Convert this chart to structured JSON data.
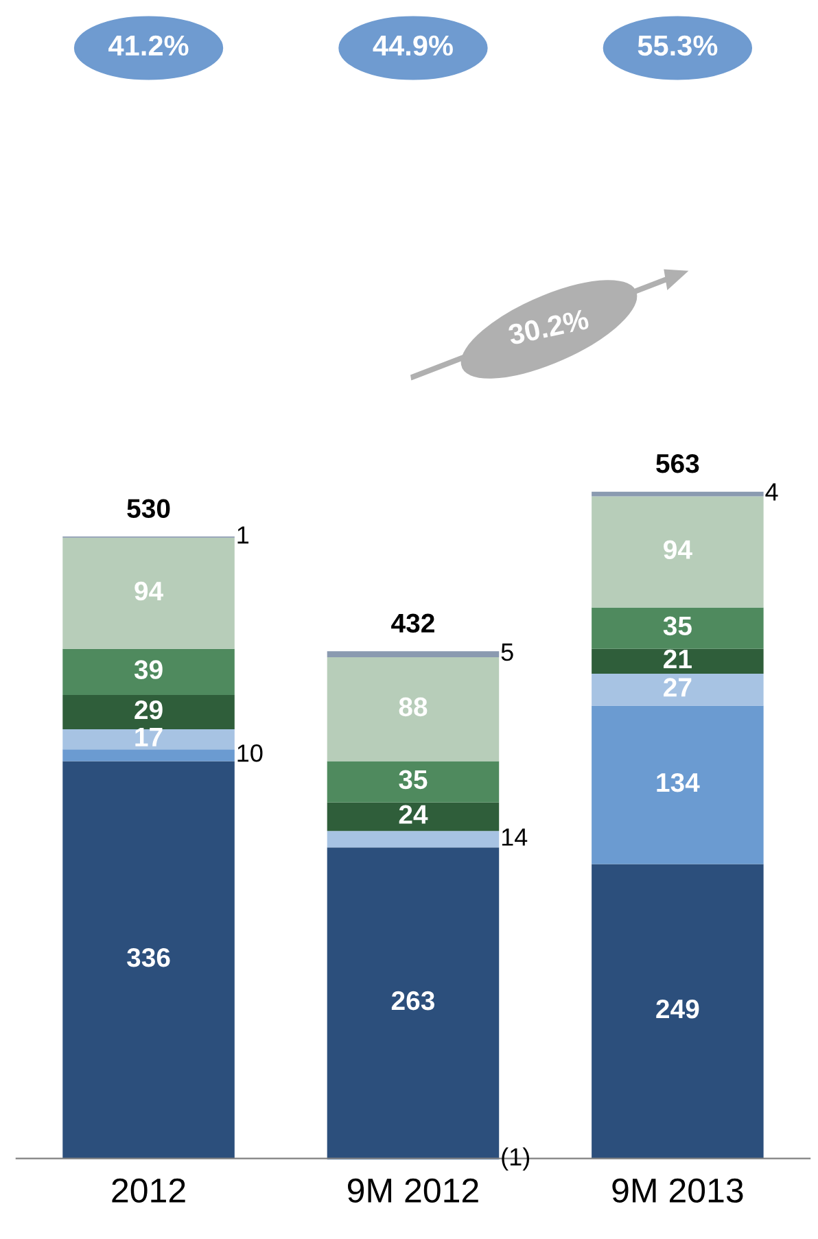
{
  "chart_data": {
    "type": "bar",
    "stacked": true,
    "data_labels": true,
    "legend": false,
    "grid": false,
    "categories": [
      "2012",
      "9M 2012",
      "9M 2013"
    ],
    "series": [
      {
        "color": "#2c4f7c",
        "values": [
          336,
          263,
          249
        ]
      },
      {
        "color": "#6b9bd1",
        "values": [
          10,
          -1,
          134
        ],
        "value_labels": [
          "10",
          "(1)",
          "134"
        ]
      },
      {
        "color": "#a7c3e3",
        "values": [
          17,
          14,
          27
        ]
      },
      {
        "color": "#2f5e3a",
        "values": [
          29,
          24,
          21
        ]
      },
      {
        "color": "#4f8a5e",
        "values": [
          39,
          35,
          35
        ]
      },
      {
        "color": "#b7cdb9",
        "values": [
          94,
          88,
          94
        ]
      },
      {
        "color": "#8a9ab0",
        "values": [
          1,
          5,
          4
        ]
      }
    ],
    "totals": [
      "530",
      "432",
      "563"
    ],
    "annotations": [
      "41.2%",
      "44.9%",
      "55.3%",
      "30.2%"
    ]
  }
}
